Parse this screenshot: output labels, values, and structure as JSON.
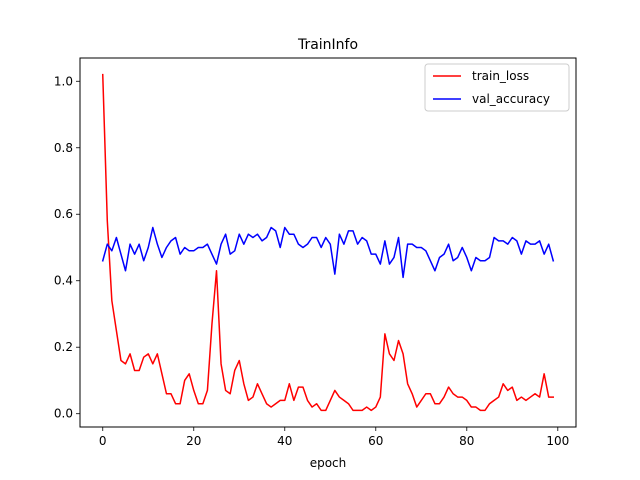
{
  "chart_data": {
    "type": "line",
    "title": "TrainInfo",
    "xlabel": "epoch",
    "ylabel": "",
    "xlim": [
      -5,
      104
    ],
    "ylim": [
      -0.04,
      1.07
    ],
    "xticks": [
      0,
      20,
      40,
      60,
      80,
      100
    ],
    "yticks": [
      0.0,
      0.2,
      0.4,
      0.6,
      0.8,
      1.0
    ],
    "ytick_labels": [
      "0.0",
      "0.2",
      "0.4",
      "0.6",
      "0.8",
      "1.0"
    ],
    "grid": false,
    "legend_position": "top-right",
    "x": [
      0,
      1,
      2,
      3,
      4,
      5,
      6,
      7,
      8,
      9,
      10,
      11,
      12,
      13,
      14,
      15,
      16,
      17,
      18,
      19,
      20,
      21,
      22,
      23,
      24,
      25,
      26,
      27,
      28,
      29,
      30,
      31,
      32,
      33,
      34,
      35,
      36,
      37,
      38,
      39,
      40,
      41,
      42,
      43,
      44,
      45,
      46,
      47,
      48,
      49,
      50,
      51,
      52,
      53,
      54,
      55,
      56,
      57,
      58,
      59,
      60,
      61,
      62,
      63,
      64,
      65,
      66,
      67,
      68,
      69,
      70,
      71,
      72,
      73,
      74,
      75,
      76,
      77,
      78,
      79,
      80,
      81,
      82,
      83,
      84,
      85,
      86,
      87,
      88,
      89,
      90,
      91,
      92,
      93,
      94,
      95,
      96,
      97,
      98,
      99
    ],
    "series": [
      {
        "name": "train_loss",
        "color": "#ff0000",
        "values": [
          1.02,
          0.58,
          0.34,
          0.25,
          0.16,
          0.15,
          0.18,
          0.13,
          0.13,
          0.17,
          0.18,
          0.15,
          0.18,
          0.12,
          0.06,
          0.06,
          0.03,
          0.03,
          0.1,
          0.12,
          0.07,
          0.03,
          0.03,
          0.07,
          0.27,
          0.43,
          0.15,
          0.07,
          0.06,
          0.13,
          0.16,
          0.09,
          0.04,
          0.05,
          0.09,
          0.06,
          0.03,
          0.02,
          0.03,
          0.04,
          0.04,
          0.09,
          0.04,
          0.08,
          0.08,
          0.04,
          0.02,
          0.03,
          0.01,
          0.01,
          0.04,
          0.07,
          0.05,
          0.04,
          0.03,
          0.01,
          0.01,
          0.01,
          0.02,
          0.01,
          0.02,
          0.05,
          0.24,
          0.18,
          0.16,
          0.22,
          0.18,
          0.09,
          0.06,
          0.02,
          0.04,
          0.06,
          0.06,
          0.03,
          0.03,
          0.05,
          0.08,
          0.06,
          0.05,
          0.05,
          0.04,
          0.02,
          0.02,
          0.01,
          0.01,
          0.03,
          0.04,
          0.05,
          0.09,
          0.07,
          0.08,
          0.04,
          0.05,
          0.04,
          0.05,
          0.06,
          0.05,
          0.12,
          0.05,
          0.05
        ]
      },
      {
        "name": "val_accuracy",
        "color": "#0000ff",
        "values": [
          0.46,
          0.51,
          0.49,
          0.53,
          0.48,
          0.43,
          0.51,
          0.48,
          0.51,
          0.46,
          0.5,
          0.56,
          0.51,
          0.47,
          0.5,
          0.52,
          0.53,
          0.48,
          0.5,
          0.49,
          0.49,
          0.5,
          0.5,
          0.51,
          0.48,
          0.45,
          0.51,
          0.54,
          0.48,
          0.49,
          0.54,
          0.51,
          0.54,
          0.53,
          0.54,
          0.52,
          0.53,
          0.56,
          0.55,
          0.5,
          0.56,
          0.54,
          0.54,
          0.51,
          0.5,
          0.51,
          0.53,
          0.53,
          0.5,
          0.53,
          0.51,
          0.42,
          0.54,
          0.51,
          0.55,
          0.55,
          0.51,
          0.53,
          0.52,
          0.48,
          0.48,
          0.45,
          0.52,
          0.45,
          0.47,
          0.53,
          0.41,
          0.51,
          0.51,
          0.5,
          0.5,
          0.49,
          0.46,
          0.43,
          0.47,
          0.48,
          0.51,
          0.46,
          0.47,
          0.5,
          0.47,
          0.43,
          0.47,
          0.46,
          0.46,
          0.47,
          0.53,
          0.52,
          0.52,
          0.51,
          0.53,
          0.52,
          0.48,
          0.52,
          0.51,
          0.51,
          0.52,
          0.48,
          0.51,
          0.46
        ]
      }
    ]
  }
}
